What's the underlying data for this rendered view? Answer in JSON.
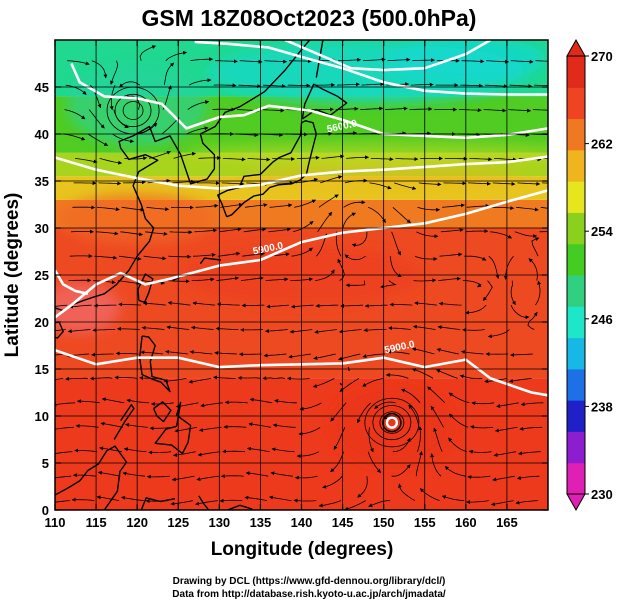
{
  "title": "GSM 18Z08Oct2023 (500.0hPa)",
  "xlabel": "Longitude (degrees)",
  "ylabel": "Latitude  (degrees)",
  "credits": [
    "Drawing by DCL (https://www.gfd-dennou.org/library/dcl/)",
    "Data from http://database.rish.kyoto-u.ac.jp/arch/jmadata/"
  ],
  "colors": {
    "cold": "#00c8a0",
    "mid": "#44cc22",
    "warm": "#ee4422",
    "contour": "#ffffff",
    "coast": "#000000"
  },
  "colorbar": {
    "ticks": [
      230,
      238,
      246,
      254,
      262,
      270
    ],
    "colors": [
      "#e01fb4",
      "#8c1ed0",
      "#2020c8",
      "#1e70e6",
      "#18b8e6",
      "#1ee6c8",
      "#30d080",
      "#44cc22",
      "#8cd01e",
      "#e6e61e",
      "#f0b41e",
      "#f07820",
      "#ee4422",
      "#e02a1a"
    ]
  },
  "chart_data": {
    "type": "heatmap",
    "variable": "temperature (K) with streamlines and geopotential height contours",
    "xlim": [
      110,
      170
    ],
    "ylim": [
      0,
      50
    ],
    "xticks": [
      110,
      115,
      120,
      125,
      130,
      135,
      140,
      145,
      150,
      155,
      160,
      165
    ],
    "yticks": [
      0,
      5,
      10,
      15,
      20,
      25,
      30,
      35,
      40,
      45
    ],
    "color_range": [
      230,
      270
    ],
    "contour_labels": [
      {
        "text": "5900.0",
        "lon": 136,
        "lat": 27.5
      },
      {
        "text": "5900.0",
        "lon": 152,
        "lat": 17
      },
      {
        "text": "5600.0",
        "lon": 145,
        "lat": 40.5
      }
    ],
    "contours": [
      [
        [
          110,
          17
        ],
        [
          115,
          15.5
        ],
        [
          120,
          16.2
        ],
        [
          125,
          16.2
        ],
        [
          130,
          15.2
        ],
        [
          135,
          15.4
        ],
        [
          140,
          15.5
        ],
        [
          145,
          15.6
        ],
        [
          150,
          16.2
        ],
        [
          155,
          15.2
        ],
        [
          160,
          16
        ],
        [
          163,
          14
        ],
        [
          168,
          12.5
        ],
        [
          170,
          12.2
        ]
      ],
      [
        [
          110,
          20.5
        ],
        [
          112,
          21.8
        ],
        [
          115,
          24
        ],
        [
          118,
          25.2
        ],
        [
          121,
          24
        ],
        [
          124,
          24.6
        ],
        [
          130,
          26
        ],
        [
          135,
          26.6
        ],
        [
          140,
          28.5
        ],
        [
          145,
          29.5
        ],
        [
          150,
          30
        ],
        [
          155,
          30.5
        ],
        [
          160,
          31.5
        ],
        [
          165,
          32.8
        ],
        [
          170,
          34
        ]
      ],
      [
        [
          110,
          25.5
        ],
        [
          111,
          24
        ],
        [
          112.5,
          23.3
        ],
        [
          114,
          23
        ]
      ],
      [
        [
          110,
          37.5
        ],
        [
          115,
          36.2
        ],
        [
          120,
          35.3
        ],
        [
          125,
          34.5
        ],
        [
          130,
          34.2
        ],
        [
          135,
          34.6
        ],
        [
          140,
          35.6
        ],
        [
          145,
          36
        ],
        [
          150,
          36.2
        ],
        [
          155,
          36.5
        ],
        [
          160,
          36.8
        ],
        [
          165,
          37
        ],
        [
          170,
          37.6
        ]
      ],
      [
        [
          112,
          47.5
        ],
        [
          113,
          45.5
        ],
        [
          116,
          44
        ],
        [
          120,
          43.8
        ],
        [
          123,
          43.2
        ],
        [
          126,
          40.6
        ],
        [
          130,
          41.8
        ],
        [
          133,
          42
        ],
        [
          136,
          43
        ],
        [
          141,
          42.5
        ],
        [
          145,
          41.5
        ],
        [
          150,
          40
        ],
        [
          155,
          39.8
        ],
        [
          160,
          39.6
        ],
        [
          165,
          39.9
        ],
        [
          170,
          40.6
        ]
      ],
      [
        [
          127,
          49.8
        ],
        [
          131,
          49.6
        ],
        [
          136,
          49.2
        ],
        [
          140,
          48.2
        ],
        [
          145,
          47
        ],
        [
          150,
          45.5
        ],
        [
          155,
          44.6
        ],
        [
          160,
          44.3
        ],
        [
          165,
          44.2
        ],
        [
          170,
          44.2
        ]
      ],
      [
        [
          138,
          50
        ],
        [
          142,
          48.5
        ],
        [
          146,
          47
        ],
        [
          150,
          46.8
        ],
        [
          155,
          47
        ],
        [
          160,
          48.5
        ],
        [
          163,
          50
        ]
      ]
    ],
    "vortices": [
      {
        "lon": 119.5,
        "lat": 42.5,
        "type": "cyclonic"
      },
      {
        "lon": 151,
        "lat": 9.3,
        "type": "typhoon"
      },
      {
        "lon": 147,
        "lat": 30,
        "type": "anticyclonic"
      },
      {
        "lon": 167,
        "lat": 24,
        "type": "cyclonic"
      }
    ]
  }
}
